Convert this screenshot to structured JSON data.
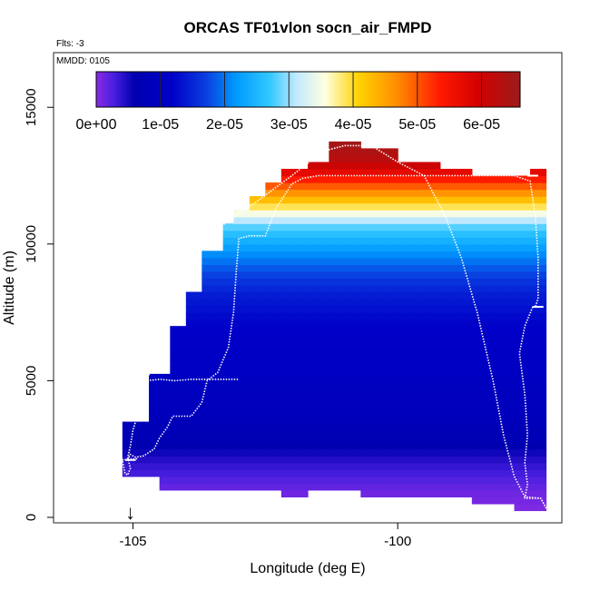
{
  "chart_data": {
    "type": "heatmap",
    "title": "ORCAS TF01vlon socn_air_FMPD",
    "flts_note": "Flts: -3",
    "mmdd_note": "MMDD: 0105",
    "xlabel": "Longitude (deg E)",
    "ylabel": "Altitude (m)",
    "xlim": [
      -106.5,
      -96.9
    ],
    "ylim": [
      -200,
      17000
    ],
    "x_ticks": [
      -105,
      -100
    ],
    "x_tick_labels": [
      "-105",
      "-100"
    ],
    "y_ticks": [
      0,
      5000,
      10000,
      15000
    ],
    "y_tick_labels": [
      "0",
      "5000",
      "10000",
      "15000"
    ],
    "colorbar": {
      "min": 0,
      "max": 6.6e-05,
      "ticks": [
        0,
        1e-05,
        2e-05,
        3e-05,
        4e-05,
        5e-05,
        6e-05
      ],
      "tick_labels": [
        "0e+00",
        "1e-05",
        "2e-05",
        "3e-05",
        "4e-05",
        "5e-05",
        "6e-05"
      ],
      "stops": [
        {
          "v": 0.0,
          "c": "#8a2be2"
        },
        {
          "v": 0.04,
          "c": "#4b1fe0"
        },
        {
          "v": 0.09,
          "c": "#0000b0"
        },
        {
          "v": 0.18,
          "c": "#0000c8"
        },
        {
          "v": 0.26,
          "c": "#0a3fe0"
        },
        {
          "v": 0.33,
          "c": "#009aff"
        },
        {
          "v": 0.41,
          "c": "#32c8ff"
        },
        {
          "v": 0.47,
          "c": "#bfe8ff"
        },
        {
          "v": 0.54,
          "c": "#ffffe0"
        },
        {
          "v": 0.62,
          "c": "#ffd200"
        },
        {
          "v": 0.71,
          "c": "#ff8c00"
        },
        {
          "v": 0.81,
          "c": "#ff1a00"
        },
        {
          "v": 0.9,
          "c": "#d40000"
        },
        {
          "v": 1.0,
          "c": "#9b1c1c"
        }
      ]
    },
    "field": {
      "lon_min": -105.2,
      "lon_max": -97.2,
      "alt_step": 250,
      "columns": [
        {
          "lon0": -105.2,
          "lon1": -104.7,
          "top": 3500
        },
        {
          "lon0": -104.7,
          "lon1": -104.3,
          "top": 5250
        },
        {
          "lon0": -104.3,
          "lon1": -104.0,
          "top": 7000
        },
        {
          "lon0": -104.0,
          "lon1": -103.7,
          "top": 8250
        },
        {
          "lon0": -103.7,
          "lon1": -103.3,
          "top": 9750
        },
        {
          "lon0": -103.3,
          "lon1": -103.1,
          "top": 10750
        },
        {
          "lon0": -103.1,
          "lon1": -102.8,
          "top": 11250
        },
        {
          "lon0": -102.8,
          "lon1": -102.5,
          "top": 11750
        },
        {
          "lon0": -102.5,
          "lon1": -102.2,
          "top": 12250
        },
        {
          "lon0": -102.2,
          "lon1": -101.7,
          "top": 12750
        },
        {
          "lon0": -101.7,
          "lon1": -101.3,
          "top": 13000
        },
        {
          "lon0": -101.3,
          "lon1": -100.7,
          "top": 13750
        },
        {
          "lon0": -100.7,
          "lon1": -100.0,
          "top": 13500
        },
        {
          "lon0": -100.0,
          "lon1": -99.2,
          "top": 13000
        },
        {
          "lon0": -99.2,
          "lon1": -98.6,
          "top": 12750
        },
        {
          "lon0": -98.6,
          "lon1": -97.5,
          "top": 12500
        },
        {
          "lon0": -97.5,
          "lon1": -97.2,
          "top": 12750
        }
      ],
      "bottoms": [
        {
          "lon0": -105.2,
          "lon1": -104.5,
          "bottom": 1500
        },
        {
          "lon0": -104.5,
          "lon1": -103.3,
          "bottom": 1000
        },
        {
          "lon0": -103.3,
          "lon1": -102.8,
          "bottom": 1000
        },
        {
          "lon0": -102.8,
          "lon1": -102.2,
          "bottom": 1000
        },
        {
          "lon0": -102.2,
          "lon1": -101.7,
          "bottom": 750
        },
        {
          "lon0": -101.7,
          "lon1": -100.7,
          "bottom": 1000
        },
        {
          "lon0": -100.7,
          "lon1": -99.5,
          "bottom": 750
        },
        {
          "lon0": -99.5,
          "lon1": -98.6,
          "bottom": 750
        },
        {
          "lon0": -98.6,
          "lon1": -97.8,
          "bottom": 500
        },
        {
          "lon0": -97.8,
          "lon1": -97.2,
          "bottom": 250
        }
      ],
      "profile": [
        {
          "alt": 0,
          "v": 0.0
        },
        {
          "alt": 1000,
          "v": 0.02
        },
        {
          "alt": 2000,
          "v": 0.06
        },
        {
          "alt": 2750,
          "v": 0.1
        },
        {
          "alt": 3500,
          "v": 0.13
        },
        {
          "alt": 5000,
          "v": 0.15
        },
        {
          "alt": 7000,
          "v": 0.18
        },
        {
          "alt": 8250,
          "v": 0.22
        },
        {
          "alt": 9000,
          "v": 0.27
        },
        {
          "alt": 9750,
          "v": 0.33
        },
        {
          "alt": 10250,
          "v": 0.38
        },
        {
          "alt": 10750,
          "v": 0.44
        },
        {
          "alt": 11000,
          "v": 0.5
        },
        {
          "alt": 11250,
          "v": 0.56
        },
        {
          "alt": 11500,
          "v": 0.62
        },
        {
          "alt": 11750,
          "v": 0.67
        },
        {
          "alt": 12000,
          "v": 0.73
        },
        {
          "alt": 12250,
          "v": 0.78
        },
        {
          "alt": 12500,
          "v": 0.84
        },
        {
          "alt": 12750,
          "v": 0.89
        },
        {
          "alt": 13000,
          "v": 0.94
        },
        {
          "alt": 13750,
          "v": 0.99
        }
      ]
    },
    "flight_track": [
      [
        -105.1,
        2100
      ],
      [
        -105.05,
        2300
      ],
      [
        -104.95,
        2200
      ],
      [
        -104.8,
        2250
      ],
      [
        -104.6,
        2500
      ],
      [
        -104.5,
        2900
      ],
      [
        -104.35,
        3300
      ],
      [
        -104.25,
        3700
      ],
      [
        -103.9,
        3700
      ],
      [
        -103.7,
        4200
      ],
      [
        -103.6,
        5000
      ],
      [
        -103.4,
        5300
      ],
      [
        -103.2,
        6200
      ],
      [
        -103.1,
        7500
      ],
      [
        -103.05,
        9000
      ],
      [
        -103.0,
        10200
      ],
      [
        -102.8,
        10300
      ],
      [
        -102.5,
        10300
      ],
      [
        -102.3,
        11300
      ],
      [
        -102.0,
        12200
      ],
      [
        -101.8,
        12400
      ],
      [
        -101.5,
        12500
      ],
      [
        -101.0,
        12500
      ],
      [
        -100.5,
        12500
      ],
      [
        -100.0,
        12500
      ],
      [
        -99.5,
        12500
      ],
      [
        -99.0,
        12500
      ],
      [
        -98.5,
        12500
      ],
      [
        -97.8,
        12500
      ],
      [
        -97.5,
        12300
      ],
      [
        -97.4,
        11000
      ],
      [
        -97.35,
        9500
      ],
      [
        -97.35,
        8000
      ],
      [
        -97.4,
        7700
      ]
    ],
    "flight_track_2": [
      [
        -97.45,
        7700
      ],
      [
        -97.6,
        7000
      ],
      [
        -97.7,
        6000
      ],
      [
        -97.6,
        4500
      ],
      [
        -97.55,
        3000
      ],
      [
        -97.6,
        2000
      ],
      [
        -97.55,
        1200
      ],
      [
        -97.6,
        700
      ],
      [
        -97.3,
        700
      ],
      [
        -97.2,
        350
      ],
      [
        -97.3,
        700
      ],
      [
        -97.6,
        750
      ],
      [
        -97.8,
        1500
      ],
      [
        -98.0,
        3000
      ],
      [
        -98.2,
        5000
      ],
      [
        -98.5,
        7500
      ],
      [
        -98.8,
        9500
      ],
      [
        -99.1,
        11000
      ],
      [
        -99.5,
        12500
      ],
      [
        -100.0,
        13000
      ],
      [
        -100.5,
        13600
      ],
      [
        -101.0,
        13600
      ],
      [
        -101.4,
        13400
      ]
    ],
    "flight_track_3": [
      [
        -101.4,
        13400
      ],
      [
        -102.0,
        12500
      ],
      [
        -102.7,
        11500
      ],
      [
        -103.3,
        10700
      ],
      [
        -103.7,
        10000
      ],
      [
        -104.0,
        9000
      ],
      [
        -104.2,
        8000
      ],
      [
        -104.4,
        7000
      ],
      [
        -104.6,
        6000
      ],
      [
        -104.7,
        5200
      ],
      [
        -104.75,
        5000
      ],
      [
        -104.5,
        5050
      ],
      [
        -104.2,
        5000
      ],
      [
        -103.9,
        5050
      ],
      [
        -103.6,
        5050
      ],
      [
        -103.1,
        5050
      ],
      [
        -103.0,
        5050
      ]
    ],
    "flight_track_4": [
      [
        -104.75,
        5000
      ],
      [
        -104.8,
        4500
      ],
      [
        -104.9,
        3800
      ],
      [
        -105.0,
        3200
      ],
      [
        -105.05,
        2600
      ],
      [
        -105.1,
        2200
      ],
      [
        -105.05,
        1800
      ],
      [
        -105.1,
        1550
      ],
      [
        -105.15,
        1600
      ],
      [
        -105.2,
        2100
      ],
      [
        -104.9,
        2150
      ]
    ],
    "arrow_lon": -105.05,
    "arrow_label": "↓",
    "side_marks": [
      {
        "lon": -97.35,
        "alt": 7700
      },
      {
        "lon": -97.45,
        "alt": 12500
      },
      {
        "lon": -105.05,
        "alt": 2100
      }
    ]
  }
}
